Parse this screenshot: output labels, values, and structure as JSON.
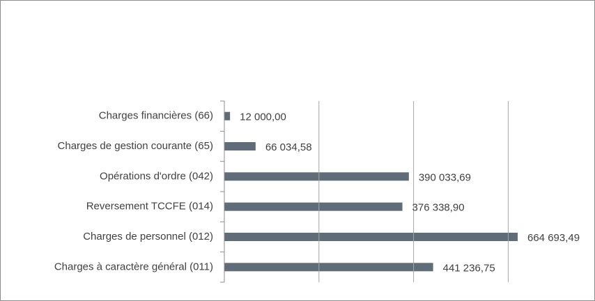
{
  "chart_data": {
    "type": "bar",
    "orientation": "horizontal",
    "categories": [
      "Charges financières (66)",
      "Charges de gestion courante (65)",
      "Opérations d'ordre (042)",
      "Reversement TCCFE (014)",
      "Charges de personnel (012)",
      "Charges à caractère général (011)"
    ],
    "values": [
      12000.0,
      66034.58,
      390033.69,
      376338.9,
      664693.49,
      441236.75
    ],
    "value_labels": [
      "12 000,00",
      "66 034,58",
      "390 033,69",
      "376 338,90",
      "664 693,49",
      "441 236,75"
    ],
    "color": "#616c79",
    "xlim": [
      0,
      620000
    ],
    "xticks": [
      0,
      200000,
      400000,
      600000
    ],
    "grid": true
  }
}
